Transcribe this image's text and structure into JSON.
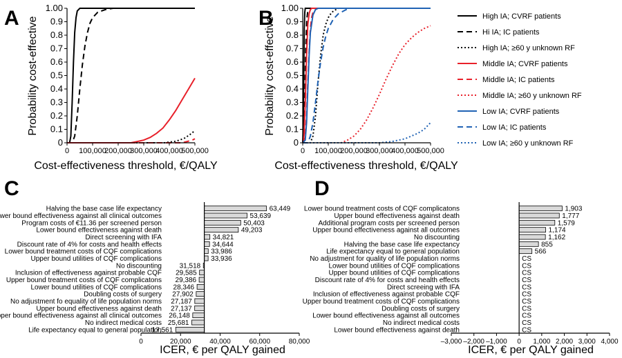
{
  "figure": {
    "panel_letters": [
      "A",
      "B",
      "C",
      "D"
    ],
    "legend": [
      {
        "label": "High IA; CVRF patients",
        "color": "#000000",
        "dash": "solid"
      },
      {
        "label": "Hi IA; IC patients",
        "color": "#000000",
        "dash": "dashed"
      },
      {
        "label": "High IA; ≥60 y unknown RF",
        "color": "#000000",
        "dash": "dotted"
      },
      {
        "label": "Middle IA; CVRF patients",
        "color": "#e8202a",
        "dash": "solid"
      },
      {
        "label": "Middle IA; IC patients",
        "color": "#e8202a",
        "dash": "dashed"
      },
      {
        "label": "Middle IA; ≥60 y unknown RF",
        "color": "#e8202a",
        "dash": "dotted"
      },
      {
        "label": "Low IA; CVRF patients",
        "color": "#1f62b4",
        "dash": "solid"
      },
      {
        "label": "Low IA; IC patients",
        "color": "#1f62b4",
        "dash": "dashed"
      },
      {
        "label": "Low IA; ≥60 y unknown RF",
        "color": "#1f62b4",
        "dash": "dotted"
      }
    ]
  },
  "chart_data": [
    {
      "panel": "A",
      "type": "line",
      "xlabel": "Cost-effectiveness threshold, €/QALY",
      "ylabel": "Probability cost-effective",
      "xlim": [
        0,
        500000
      ],
      "ylim": [
        0,
        1
      ],
      "xticks": [
        "0",
        "100,000",
        "200,000",
        "300,000",
        "400,000",
        "500,000"
      ],
      "yticks": [
        "0",
        "0.1",
        "0.2",
        "0.3",
        "0.4",
        "0.5",
        "0.6",
        "0.7",
        "0.8",
        "0.9",
        "1.00"
      ],
      "grid": false,
      "series": [
        {
          "name": "High IA; CVRF patients",
          "x": [
            0,
            10000,
            15000,
            20000,
            25000,
            30000,
            35000,
            40000,
            50000,
            60000,
            80000,
            500000
          ],
          "y": [
            0,
            0,
            0.05,
            0.3,
            0.6,
            0.82,
            0.93,
            0.98,
            1,
            1,
            1,
            1
          ]
        },
        {
          "name": "Hi IA; IC patients",
          "x": [
            0,
            20000,
            30000,
            40000,
            50000,
            60000,
            70000,
            80000,
            90000,
            100000,
            120000,
            150000,
            180000,
            200000,
            500000
          ],
          "y": [
            0,
            0,
            0.05,
            0.2,
            0.4,
            0.58,
            0.72,
            0.82,
            0.89,
            0.93,
            0.97,
            0.99,
            1,
            1,
            1
          ]
        },
        {
          "name": "High IA; ≥60 y unknown RF",
          "x": [
            0,
            380000,
            400000,
            420000,
            440000,
            460000,
            480000,
            500000
          ],
          "y": [
            0,
            0,
            0.005,
            0.01,
            0.02,
            0.035,
            0.06,
            0.09
          ]
        },
        {
          "name": "Middle IA; CVRF patients",
          "x": [
            0,
            250000,
            275000,
            300000,
            325000,
            350000,
            375000,
            400000,
            425000,
            450000,
            475000,
            500000
          ],
          "y": [
            0,
            0,
            0.01,
            0.02,
            0.04,
            0.07,
            0.11,
            0.17,
            0.24,
            0.32,
            0.4,
            0.48
          ]
        },
        {
          "name": "Middle IA; IC patients",
          "x": [
            0,
            450000,
            470000,
            490000,
            500000
          ],
          "y": [
            0,
            0,
            0.01,
            0.02,
            0.03
          ]
        }
      ]
    },
    {
      "panel": "B",
      "type": "line",
      "xlabel": "Cost-effectiveness threshold, €/QALY",
      "ylabel": "Probability cost-effective",
      "xlim": [
        0,
        500000
      ],
      "ylim": [
        0,
        1
      ],
      "xticks": [
        "0",
        "100,000",
        "200,000",
        "300,000",
        "400,000",
        "500,000"
      ],
      "yticks": [
        "0",
        "0.1",
        "0.2",
        "0.3",
        "0.4",
        "0.5",
        "0.6",
        "0.7",
        "0.8",
        "0.9",
        "1.00"
      ],
      "grid": false,
      "series": [
        {
          "name": "High IA; CVRF patients",
          "x": [
            0,
            2000,
            4000,
            6000,
            8000,
            10000,
            500000
          ],
          "y": [
            0,
            0.1,
            0.5,
            0.85,
            0.97,
            1,
            1
          ]
        },
        {
          "name": "Hi IA; IC patients",
          "x": [
            0,
            5000,
            8000,
            12000,
            16000,
            20000,
            25000,
            500000
          ],
          "y": [
            0,
            0.05,
            0.3,
            0.7,
            0.92,
            0.98,
            1,
            1
          ]
        },
        {
          "name": "High IA; ≥60 y unknown RF",
          "x": [
            0,
            30000,
            40000,
            50000,
            60000,
            70000,
            80000,
            90000,
            100000,
            110000,
            120000,
            140000,
            500000
          ],
          "y": [
            0,
            0,
            0.05,
            0.2,
            0.45,
            0.65,
            0.8,
            0.88,
            0.93,
            0.96,
            0.98,
            1,
            1
          ]
        },
        {
          "name": "Middle IA; CVRF patients",
          "x": [
            0,
            5000,
            10000,
            15000,
            20000,
            25000,
            30000,
            35000,
            500000
          ],
          "y": [
            0,
            0.05,
            0.3,
            0.65,
            0.88,
            0.96,
            0.99,
            1,
            1
          ]
        },
        {
          "name": "Middle IA; IC patients",
          "x": [
            0,
            10000,
            15000,
            20000,
            25000,
            30000,
            35000,
            40000,
            50000,
            60000,
            500000
          ],
          "y": [
            0,
            0.05,
            0.2,
            0.45,
            0.68,
            0.85,
            0.93,
            0.97,
            0.99,
            1,
            1
          ]
        },
        {
          "name": "Middle IA; ≥60 y unknown RF",
          "x": [
            0,
            150000,
            175000,
            200000,
            225000,
            250000,
            275000,
            300000,
            325000,
            350000,
            375000,
            400000,
            425000,
            450000,
            475000,
            500000
          ],
          "y": [
            0,
            0,
            0.02,
            0.05,
            0.1,
            0.17,
            0.26,
            0.36,
            0.47,
            0.57,
            0.66,
            0.73,
            0.78,
            0.82,
            0.85,
            0.87
          ]
        },
        {
          "name": "Low IA; CVRF patients",
          "x": [
            0,
            10000,
            15000,
            20000,
            25000,
            30000,
            40000,
            50000,
            60000,
            500000
          ],
          "y": [
            0,
            0.02,
            0.15,
            0.4,
            0.65,
            0.82,
            0.95,
            0.99,
            1,
            1
          ]
        },
        {
          "name": "Low IA; IC patients",
          "x": [
            0,
            20000,
            30000,
            40000,
            50000,
            60000,
            70000,
            80000,
            90000,
            100000,
            120000,
            140000,
            160000,
            180000,
            500000
          ],
          "y": [
            0,
            0,
            0.05,
            0.15,
            0.3,
            0.46,
            0.6,
            0.71,
            0.79,
            0.85,
            0.92,
            0.96,
            0.98,
            1,
            1
          ]
        },
        {
          "name": "Low IA; ≥60 y unknown RF",
          "x": [
            0,
            300000,
            350000,
            400000,
            450000,
            475000,
            500000
          ],
          "y": [
            0,
            0,
            0.01,
            0.03,
            0.07,
            0.1,
            0.15
          ]
        }
      ]
    },
    {
      "panel": "C",
      "type": "bar",
      "xlabel": "ICER, € per QALY gained",
      "xlim": [
        0,
        80000
      ],
      "xticks": [
        "0",
        "20,000",
        "40,000",
        "60,000",
        "80,000"
      ],
      "base": 32000,
      "categories": [
        "Halving the base case life expectancy",
        "Lower bound effectiveness against all clinical outcomes",
        "Program costs of €11.36 per screened person",
        "Lower bound effectiveness against death",
        "Direct screening with IFA",
        "Discount rate of 4% for costs and health effects",
        "Lower bound treatment costs of CQF complications",
        "Upper bound utilities of CQF complications",
        "No discounting",
        "Inclusion of effectiveness against probable CQF",
        "Upper bound treatment costs of CQF complicatons",
        "Lower bound utilities of CQF complications",
        "Doubling costs of surgery",
        "No adjustment fo equality of life population norms",
        "Upper bound effectiveness against death",
        "Upper bound effectiveness against all clinical outcomes",
        "No indirect medical costs",
        "Life expectancy equal to general population"
      ],
      "values": [
        63449,
        53639,
        50403,
        49203,
        34821,
        34644,
        33986,
        33936,
        31518,
        29585,
        29386,
        28346,
        27902,
        27187,
        27137,
        26148,
        25681,
        17561
      ],
      "value_labels": [
        "63,449",
        "53,639",
        "50,403",
        "49,203",
        "34,821",
        "34,644",
        "33,986",
        "33,936",
        "31,518",
        "29,585",
        "29,386",
        "28,346",
        "27,902",
        "27,187",
        "27,137",
        "26,148",
        "25,681",
        "17,561"
      ]
    },
    {
      "panel": "D",
      "type": "bar",
      "xlabel": "ICER, € per QALY gained",
      "xlim": [
        -3000,
        4000
      ],
      "xticks": [
        "–3,000",
        "–2,000",
        "–1,000",
        "0",
        "1,000",
        "2,000",
        "3,000",
        "4,000"
      ],
      "base": 0,
      "categories": [
        "Lower bound treatment costs of CQF complicatons",
        "Upper bound effectiveness against death",
        "Additional program costs per screened person",
        "Upper bound effectiveness against all outcomes",
        "No discounting",
        "Halving the base case life expectancy",
        "Life expectancy equal to general population",
        "No adjustment for quality of life population norms",
        "Lower bound utilities of CQF complications",
        "Upper bound utilities of CQF complications",
        "Discount rate of 4% for costs and health effects",
        "Direct screeing with IFA",
        "Inclusion of effectiveness against probable CQF",
        "Upper bound treatment costs of CQF complications",
        "Doubling costs of surgery",
        "Lower bound effectiveness against all outcomes",
        "No indirect medical costs",
        "Lower bound effectiveness against death"
      ],
      "values": [
        1903,
        1777,
        1579,
        1174,
        1162,
        855,
        566,
        0,
        0,
        0,
        0,
        0,
        0,
        0,
        0,
        0,
        0,
        0
      ],
      "value_labels": [
        "1,903",
        "1,777",
        "1,579",
        "1,174",
        "1,162",
        "855",
        "566",
        "CS",
        "CS",
        "CS",
        "CS",
        "CS",
        "CS",
        "CS",
        "CS",
        "CS",
        "CS",
        "CS"
      ]
    }
  ]
}
